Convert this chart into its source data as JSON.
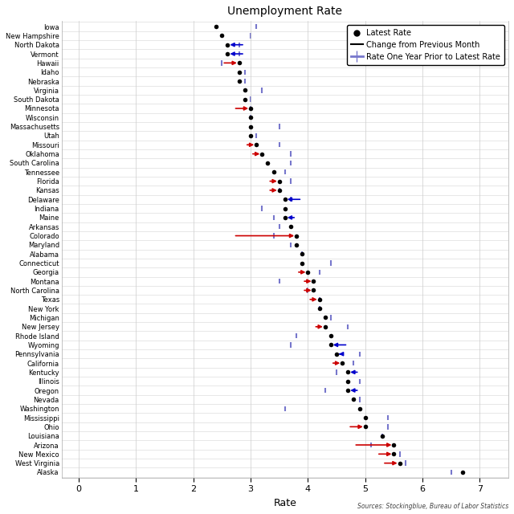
{
  "title": "Unemployment Rate",
  "xlabel": "Rate",
  "source": "Sources: Stockingblue, Bureau of Labor Statistics",
  "xlim": [
    -0.3,
    7.5
  ],
  "xticks": [
    0,
    1,
    2,
    3,
    4,
    5,
    6,
    7
  ],
  "states": [
    "Iowa",
    "New Hampshire",
    "North Dakota",
    "Vermont",
    "Hawaii",
    "Idaho",
    "Nebraska",
    "Virginia",
    "South Dakota",
    "Minnesota",
    "Wisconsin",
    "Massachusetts",
    "Utah",
    "Missouri",
    "Oklahoma",
    "South Carolina",
    "Tennessee",
    "Florida",
    "Kansas",
    "Delaware",
    "Indiana",
    "Maine",
    "Arkansas",
    "Colorado",
    "Maryland",
    "Alabama",
    "Connecticut",
    "Georgia",
    "Montana",
    "North Carolina",
    "Texas",
    "New York",
    "Michigan",
    "New Jersey",
    "Rhode Island",
    "Wyoming",
    "Pennsylvania",
    "California",
    "Kentucky",
    "Illinois",
    "Oregon",
    "Nevada",
    "Washington",
    "Mississippi",
    "Ohio",
    "Louisiana",
    "Arizona",
    "New Mexico",
    "West Virginia",
    "Alaska"
  ],
  "latest_rate": [
    2.4,
    2.5,
    2.6,
    2.6,
    2.8,
    2.8,
    2.8,
    2.9,
    2.9,
    3.0,
    3.0,
    3.0,
    3.0,
    3.1,
    3.2,
    3.3,
    3.4,
    3.5,
    3.5,
    3.6,
    3.6,
    3.6,
    3.7,
    3.8,
    3.8,
    3.9,
    3.9,
    4.0,
    4.1,
    4.1,
    4.2,
    4.2,
    4.3,
    4.3,
    4.4,
    4.4,
    4.5,
    4.6,
    4.7,
    4.7,
    4.7,
    4.8,
    4.9,
    5.0,
    5.0,
    5.3,
    5.5,
    5.5,
    5.6,
    6.7
  ],
  "prev_rate": [
    2.4,
    2.5,
    2.9,
    2.9,
    2.5,
    2.8,
    2.8,
    2.9,
    2.9,
    2.7,
    3.0,
    3.0,
    3.0,
    2.9,
    3.0,
    3.3,
    3.4,
    3.3,
    3.3,
    3.9,
    3.6,
    3.8,
    3.7,
    2.7,
    3.8,
    3.9,
    3.9,
    3.8,
    3.9,
    3.9,
    4.0,
    4.2,
    4.3,
    4.1,
    4.4,
    4.7,
    4.6,
    4.4,
    4.9,
    4.7,
    4.9,
    4.8,
    4.9,
    5.0,
    4.7,
    5.3,
    4.8,
    5.2,
    5.3,
    6.7
  ],
  "year_ago_rate": [
    3.1,
    3.0,
    2.8,
    2.8,
    2.5,
    2.9,
    2.9,
    3.2,
    3.0,
    3.0,
    3.0,
    3.5,
    3.1,
    3.5,
    3.7,
    3.7,
    3.6,
    3.7,
    3.5,
    3.7,
    3.2,
    3.4,
    3.5,
    3.4,
    3.7,
    3.9,
    4.4,
    4.2,
    3.5,
    4.0,
    4.2,
    4.2,
    4.4,
    4.7,
    3.8,
    3.7,
    4.9,
    4.8,
    4.5,
    4.9,
    4.3,
    4.9,
    3.6,
    5.4,
    5.4,
    5.3,
    5.1,
    5.6,
    5.7,
    6.5
  ],
  "bg_color": "#ffffff",
  "dot_color": "#000000",
  "red_color": "#cc0000",
  "blue_color": "#0000cc",
  "year_ago_color": "#7777cc",
  "grid_color": "#cccccc",
  "row_line_color": "#dddddd"
}
